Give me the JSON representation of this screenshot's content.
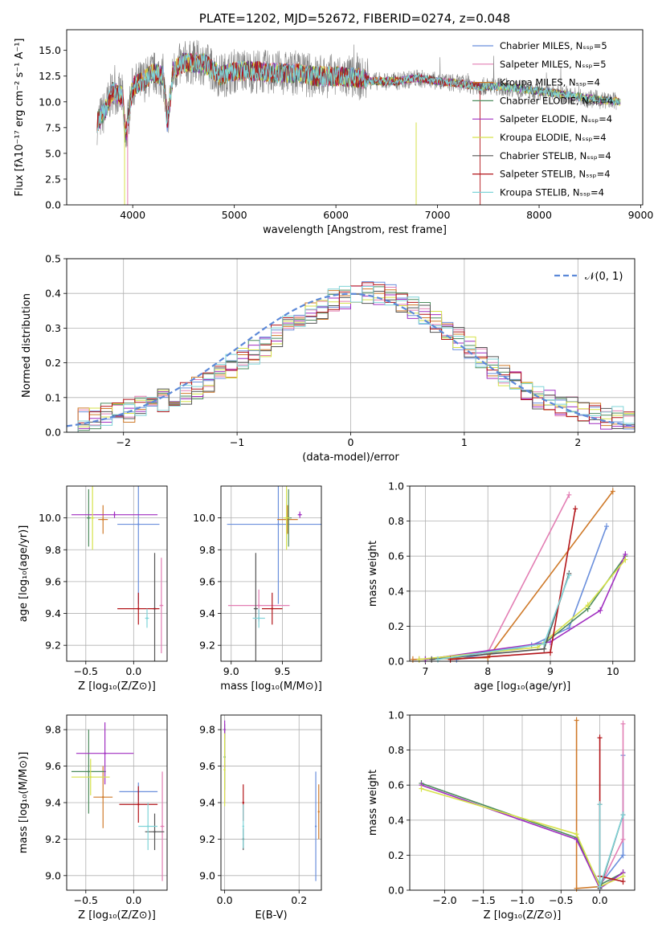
{
  "chart_data": [
    {
      "type": "line",
      "id": "spectrum",
      "title": "PLATE=1202, MJD=52672, FIBERID=0274, z=0.048",
      "xlabel": "wavelength [Angstrom, rest frame]",
      "ylabel": "Flux [fλ10⁻¹⁷ erg cm⁻² s⁻¹ A⁻¹]",
      "xlim": [
        3350,
        9020
      ],
      "ylim": [
        0,
        17
      ],
      "xticks": [
        "4000",
        "5000",
        "6000",
        "7000",
        "8000",
        "9000"
      ],
      "yticks": [
        "0.0",
        "2.5",
        "5.0",
        "7.5",
        "10.0",
        "12.5",
        "15.0"
      ],
      "grid": false,
      "legend_position": "top-right",
      "series": [
        {
          "name": "Chabrier MILES, Nₛₛₚ=5",
          "color": "#6a8fdc"
        },
        {
          "name": "Salpeter MILES, Nₛₛₚ=5",
          "color": "#e37fb4"
        },
        {
          "name": "Kroupa MILES, Nₛₛₚ=4",
          "color": "#cf7a2a"
        },
        {
          "name": "Chabrier ELODIE, Nₛₛₚ=4",
          "color": "#4e8c5e"
        },
        {
          "name": "Salpeter ELODIE, Nₛₛₚ=4",
          "color": "#a02ec0"
        },
        {
          "name": "Kroupa ELODIE, Nₛₛₚ=4",
          "color": "#d6e24a"
        },
        {
          "name": "Chabrier STELIB, Nₛₛₚ=4",
          "color": "#555555"
        },
        {
          "name": "Salpeter STELIB, Nₛₛₚ=4",
          "color": "#b3151a"
        },
        {
          "name": "Kroupa STELIB, Nₛₛₚ=4",
          "color": "#7fd4d8"
        }
      ],
      "data_color": "#808080",
      "model_anchor_points": {
        "x": [
          3650,
          3720,
          3800,
          3900,
          3930,
          3970,
          4000,
          4100,
          4200,
          4300,
          4340,
          4400,
          4500,
          4700,
          4860,
          5000,
          5200,
          5400,
          5600,
          5800,
          6000,
          6200,
          6400,
          6600,
          6800,
          7000,
          7200,
          7400,
          7600,
          7800,
          8000,
          8200,
          8500,
          8800
        ],
        "y": [
          8.0,
          9.0,
          11.0,
          10.5,
          6.5,
          9.5,
          11.5,
          12.0,
          12.8,
          12.5,
          8.0,
          13.0,
          13.8,
          13.8,
          12.5,
          13.0,
          13.0,
          12.8,
          12.8,
          12.5,
          12.5,
          12.3,
          12.0,
          12.0,
          12.3,
          12.0,
          11.8,
          11.5,
          11.5,
          11.3,
          11.0,
          10.8,
          10.3,
          10.0
        ]
      }
    },
    {
      "type": "line",
      "id": "residuals",
      "xlabel": "(data-model)/error",
      "ylabel": "Normed distribution",
      "xlim": [
        -2.5,
        2.5
      ],
      "ylim": [
        0,
        0.5
      ],
      "xticks": [
        "−2",
        "−1",
        "0",
        "1",
        "2"
      ],
      "yticks": [
        "0.0",
        "0.1",
        "0.2",
        "0.3",
        "0.4",
        "0.5"
      ],
      "grid": true,
      "legend_position": "top-right",
      "legend": "𝒩(0, 1)",
      "bin_width": 0.1,
      "histogram_envelope": [
        0.03,
        0.04,
        0.04,
        0.05,
        0.05,
        0.06,
        0.07,
        0.08,
        0.09,
        0.1,
        0.11,
        0.13,
        0.15,
        0.17,
        0.19,
        0.21,
        0.23,
        0.25,
        0.28,
        0.3,
        0.32,
        0.34,
        0.36,
        0.38,
        0.39,
        0.4,
        0.4,
        0.4,
        0.39,
        0.38,
        0.36,
        0.34,
        0.32,
        0.3,
        0.27,
        0.24,
        0.21,
        0.19,
        0.16,
        0.14,
        0.12,
        0.1,
        0.09,
        0.08,
        0.07,
        0.06,
        0.05,
        0.04,
        0.04,
        0.03
      ]
    },
    {
      "type": "scatter",
      "id": "age-vs-Z",
      "xlabel": "Z [log₁₀(Z/Z⊙)]",
      "ylabel": "age  [log₁₀(age/yr)]",
      "xlim": [
        -0.7,
        0.35
      ],
      "ylim": [
        9.1,
        10.2
      ],
      "xticks": [
        "−0.5",
        "0.0"
      ],
      "xtick_values": [
        -0.5,
        0.0
      ],
      "yticks": [
        "9.2",
        "9.4",
        "9.6",
        "9.8",
        "10.0"
      ],
      "ytick_values": [
        9.2,
        9.4,
        9.6,
        9.8,
        10.0
      ],
      "grid": true,
      "points": [
        {
          "x": 0.05,
          "xerr": 0.22,
          "y": 9.96,
          "yerr": 0.5,
          "series": 0
        },
        {
          "x": 0.29,
          "xerr": 0.02,
          "y": 9.45,
          "yerr": 0.3,
          "series": 1
        },
        {
          "x": -0.32,
          "xerr": 0.05,
          "y": 9.99,
          "yerr": 0.09,
          "series": 2
        },
        {
          "x": -0.47,
          "xerr": 0.02,
          "y": 10.0,
          "yerr": 0.18,
          "series": 3
        },
        {
          "x": -0.2,
          "xerr": 0.45,
          "y": 10.02,
          "yerr": 0.02,
          "series": 4
        },
        {
          "x": -0.43,
          "xerr": 0.02,
          "y": 10.0,
          "yerr": 0.2,
          "series": 5
        },
        {
          "x": 0.22,
          "xerr": 0.02,
          "y": 9.43,
          "yerr": 0.35,
          "series": 6
        },
        {
          "x": 0.05,
          "xerr": 0.22,
          "y": 9.43,
          "yerr": 0.1,
          "series": 7
        },
        {
          "x": 0.14,
          "xerr": 0.02,
          "y": 9.37,
          "yerr": 0.06,
          "series": 8
        }
      ]
    },
    {
      "type": "scatter",
      "id": "age-vs-mass",
      "xlabel": "mass [log₁₀(M/M⊙)]",
      "xlim": [
        8.9,
        9.88
      ],
      "ylim": [
        9.1,
        10.2
      ],
      "xticks": [
        "9.0",
        "9.5"
      ],
      "xtick_values": [
        9.0,
        9.5
      ],
      "yticks": [
        "9.2",
        "9.4",
        "9.6",
        "9.8",
        "10.0"
      ],
      "ytick_values": [
        9.2,
        9.4,
        9.6,
        9.8,
        10.0
      ],
      "grid": true,
      "points": [
        {
          "x": 9.46,
          "xerr": 0.5,
          "y": 9.96,
          "yerr": 0.5,
          "series": 0
        },
        {
          "x": 9.27,
          "xerr": 0.3,
          "y": 9.45,
          "yerr": 0.1,
          "series": 1
        },
        {
          "x": 9.55,
          "xerr": 0.1,
          "y": 9.99,
          "yerr": 0.09,
          "series": 2
        },
        {
          "x": 9.56,
          "xerr": 0.03,
          "y": 10.0,
          "yerr": 0.18,
          "series": 3
        },
        {
          "x": 9.67,
          "xerr": 0.02,
          "y": 10.02,
          "yerr": 0.02,
          "series": 4
        },
        {
          "x": 9.54,
          "xerr": 0.03,
          "y": 10.0,
          "yerr": 0.2,
          "series": 5
        },
        {
          "x": 9.24,
          "xerr": 0.02,
          "y": 9.43,
          "yerr": 0.35,
          "series": 6
        },
        {
          "x": 9.4,
          "xerr": 0.1,
          "y": 9.43,
          "yerr": 0.1,
          "series": 7
        },
        {
          "x": 9.27,
          "xerr": 0.06,
          "y": 9.37,
          "yerr": 0.06,
          "series": 8
        }
      ]
    },
    {
      "type": "line",
      "id": "mass-weight-vs-age",
      "xlabel": "age  [log₁₀(age/yr)]",
      "ylabel": "mass weight",
      "xlim": [
        6.75,
        10.35
      ],
      "ylim": [
        0,
        1.0
      ],
      "xticks": [
        "7",
        "8",
        "9",
        "10"
      ],
      "xtick_values": [
        7,
        8,
        9,
        10
      ],
      "yticks": [
        "0.0",
        "0.2",
        "0.4",
        "0.6",
        "0.8",
        "1.0"
      ],
      "ytick_values": [
        0,
        0.2,
        0.4,
        0.6,
        0.8,
        1.0
      ],
      "grid": true,
      "series": [
        {
          "series": 0,
          "x": [
            7.5,
            8.7,
            9.3,
            9.9
          ],
          "y": [
            0.01,
            0.09,
            0.19,
            0.77
          ]
        },
        {
          "series": 1,
          "x": [
            6.9,
            8.0,
            9.3
          ],
          "y": [
            0.01,
            0.05,
            0.95
          ]
        },
        {
          "series": 2,
          "x": [
            6.8,
            8.0,
            10.0
          ],
          "y": [
            0.01,
            0.02,
            0.97
          ]
        },
        {
          "series": 3,
          "x": [
            7.0,
            8.9,
            9.6,
            10.2
          ],
          "y": [
            0.01,
            0.1,
            0.3,
            0.6
          ]
        },
        {
          "series": 4,
          "x": [
            7.0,
            9.0,
            9.8,
            10.2
          ],
          "y": [
            0.01,
            0.11,
            0.29,
            0.61
          ]
        },
        {
          "series": 5,
          "x": [
            6.9,
            8.8,
            9.6,
            10.2
          ],
          "y": [
            0.01,
            0.08,
            0.32,
            0.58
          ]
        },
        {
          "series": 6,
          "x": [
            7.1,
            8.9,
            9.3
          ],
          "y": [
            0.01,
            0.07,
            0.5
          ]
        },
        {
          "series": 7,
          "x": [
            7.4,
            9.0,
            9.4
          ],
          "y": [
            0.01,
            0.05,
            0.87
          ]
        },
        {
          "series": 8,
          "x": [
            7.2,
            8.9,
            9.3
          ],
          "y": [
            0.01,
            0.1,
            0.49
          ]
        }
      ]
    },
    {
      "type": "scatter",
      "id": "mass-vs-Z",
      "xlabel": "Z [log₁₀(Z/Z⊙)]",
      "ylabel": "mass [log₁₀(M/M⊙)]",
      "xlim": [
        -0.7,
        0.35
      ],
      "ylim": [
        8.92,
        9.88
      ],
      "xticks": [
        "−0.5",
        "0.0"
      ],
      "xtick_values": [
        -0.5,
        0.0
      ],
      "yticks": [
        "9.0",
        "9.2",
        "9.4",
        "9.6",
        "9.8"
      ],
      "ytick_values": [
        9.0,
        9.2,
        9.4,
        9.6,
        9.8
      ],
      "grid": true,
      "points": [
        {
          "x": 0.05,
          "xerr": 0.2,
          "y": 9.46,
          "yerr": 0.05,
          "series": 0
        },
        {
          "x": 0.3,
          "xerr": 0.02,
          "y": 9.27,
          "yerr": 0.3,
          "series": 1
        },
        {
          "x": -0.32,
          "xerr": 0.1,
          "y": 9.43,
          "yerr": 0.17,
          "series": 2
        },
        {
          "x": -0.47,
          "xerr": 0.18,
          "y": 9.57,
          "yerr": 0.23,
          "series": 3
        },
        {
          "x": -0.3,
          "xerr": 0.3,
          "y": 9.67,
          "yerr": 0.17,
          "series": 4
        },
        {
          "x": -0.45,
          "xerr": 0.2,
          "y": 9.54,
          "yerr": 0.1,
          "series": 5
        },
        {
          "x": 0.22,
          "xerr": 0.1,
          "y": 9.24,
          "yerr": 0.1,
          "series": 6
        },
        {
          "x": 0.05,
          "xerr": 0.2,
          "y": 9.39,
          "yerr": 0.1,
          "series": 7
        },
        {
          "x": 0.15,
          "xerr": 0.1,
          "y": 9.27,
          "yerr": 0.13,
          "series": 8
        }
      ]
    },
    {
      "type": "scatter",
      "id": "mass-vs-EBV",
      "xlabel": "E(B-V)",
      "xlim": [
        -0.01,
        0.26
      ],
      "ylim": [
        8.92,
        9.88
      ],
      "xticks": [
        "0.0",
        "0.2"
      ],
      "xtick_values": [
        0.0,
        0.2
      ],
      "yticks": [
        "9.0",
        "9.2",
        "9.4",
        "9.6",
        "9.8"
      ],
      "ytick_values": [
        9.0,
        9.2,
        9.4,
        9.6,
        9.8
      ],
      "grid": true,
      "points": [
        {
          "x": 0.245,
          "y": 9.27,
          "yerr": 0.3,
          "series": 0
        },
        {
          "x": 0.0,
          "y": 9.6,
          "yerr": 0.2,
          "series": 1
        },
        {
          "x": 0.253,
          "y": 9.35,
          "yerr": 0.15,
          "series": 2
        },
        {
          "x": 0.0,
          "y": 9.65,
          "yerr": 0.18,
          "series": 3
        },
        {
          "x": 0.0,
          "y": 9.8,
          "yerr": 0.05,
          "series": 4
        },
        {
          "x": 0.0,
          "y": 9.58,
          "yerr": 0.2,
          "series": 5
        },
        {
          "x": 0.05,
          "y": 9.2,
          "yerr": 0.06,
          "series": 6
        },
        {
          "x": 0.05,
          "y": 9.4,
          "yerr": 0.1,
          "series": 7
        },
        {
          "x": 0.05,
          "y": 9.27,
          "yerr": 0.12,
          "series": 8
        }
      ]
    },
    {
      "type": "line",
      "id": "mass-weight-vs-Z",
      "xlabel": "Z [log₁₀(Z/Z⊙)]",
      "ylabel": "mass weight",
      "xlim": [
        -2.45,
        0.45
      ],
      "ylim": [
        0,
        1.0
      ],
      "xticks": [
        "−2.0",
        "−1.5",
        "−1.0",
        "−0.5",
        "0.0"
      ],
      "xtick_values": [
        -2.0,
        -1.5,
        -1.0,
        -0.5,
        0.0
      ],
      "yticks": [
        "0.0",
        "0.2",
        "0.4",
        "0.6",
        "0.8",
        "1.0"
      ],
      "ytick_values": [
        0,
        0.2,
        0.4,
        0.6,
        0.8,
        1.0
      ],
      "grid": true,
      "series": [
        {
          "series": 0,
          "x": [
            0.0,
            0.3,
            0.3
          ],
          "y": [
            0.03,
            0.2,
            0.77
          ]
        },
        {
          "series": 1,
          "x": [
            0.0,
            0.3,
            0.3
          ],
          "y": [
            0.02,
            0.29,
            0.95
          ]
        },
        {
          "series": 2,
          "x": [
            -0.3,
            -0.3,
            0.0
          ],
          "y": [
            0.97,
            0.01,
            0.02
          ]
        },
        {
          "series": 3,
          "x": [
            -2.3,
            -0.3,
            0.0,
            0.3
          ],
          "y": [
            0.61,
            0.3,
            0.03,
            0.1
          ]
        },
        {
          "series": 4,
          "x": [
            -2.3,
            -0.3,
            0.0,
            0.3
          ],
          "y": [
            0.6,
            0.29,
            0.01,
            0.1
          ]
        },
        {
          "series": 5,
          "x": [
            -2.3,
            -0.3,
            0.0,
            0.3
          ],
          "y": [
            0.58,
            0.32,
            0.02,
            0.08
          ]
        },
        {
          "series": 6,
          "x": [
            0.0,
            0.0,
            0.3
          ],
          "y": [
            0.49,
            0.01,
            0.43
          ]
        },
        {
          "series": 7,
          "x": [
            0.0,
            0.0,
            0.3
          ],
          "y": [
            0.87,
            0.08,
            0.05
          ]
        },
        {
          "series": 8,
          "x": [
            0.0,
            0.0,
            0.3
          ],
          "y": [
            0.49,
            0.02,
            0.43
          ]
        }
      ]
    }
  ]
}
